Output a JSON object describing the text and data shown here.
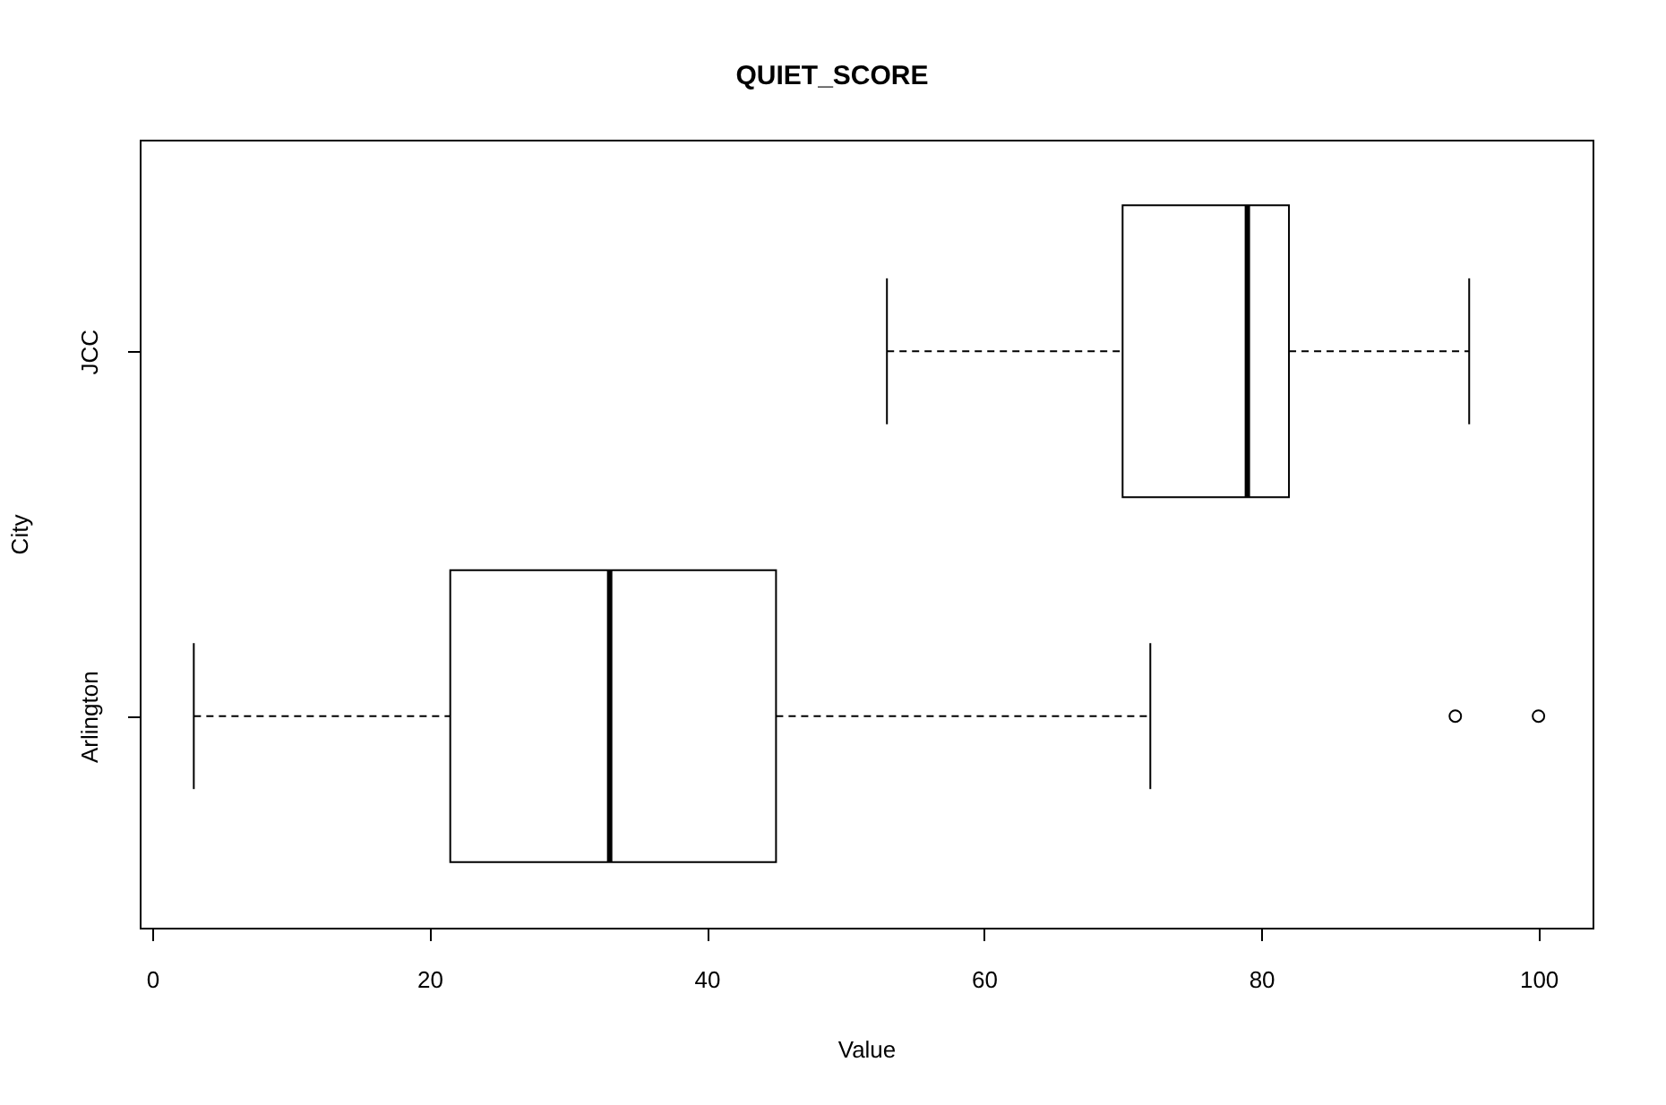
{
  "chart_data": {
    "type": "box",
    "title": "QUIET_SCORE",
    "xlabel": "Value",
    "ylabel": "City",
    "orientation": "horizontal",
    "categories": [
      "JCC",
      "Arlington"
    ],
    "boxes": [
      {
        "low": 53,
        "q1": 70,
        "median": 79,
        "q3": 82,
        "high": 95
      },
      {
        "low": 3,
        "q1": 21.5,
        "median": 33,
        "q3": 45,
        "high": 72,
        "outliers": [
          94,
          100
        ]
      }
    ],
    "xlim": [
      -0.9,
      103.9
    ],
    "xticks": [
      0,
      20,
      40,
      60,
      80,
      100
    ],
    "grid": false
  }
}
